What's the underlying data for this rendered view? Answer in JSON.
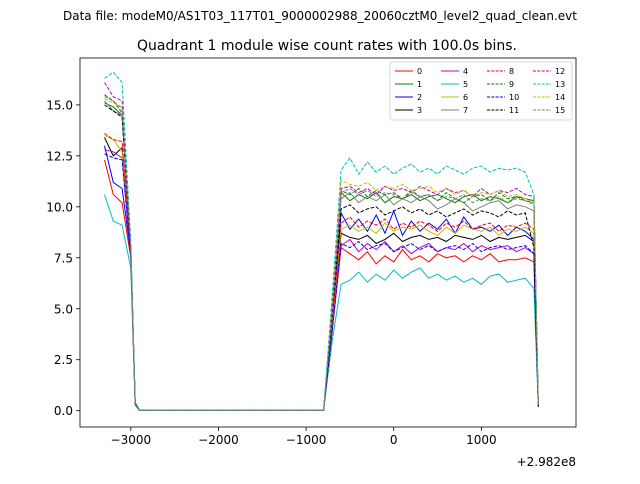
{
  "suptitle": "Data file: modeM0/AS1T03_117T01_9000002988_20060cztM0_level2_quad_clean.evt",
  "chart_data": {
    "type": "line",
    "title": "Quadrant 1 module wise count rates with 100.0s bins.",
    "xlabel": "",
    "ylabel": "",
    "x_offset_text": "+2.982e8",
    "xlim": [
      -3580,
      2080
    ],
    "ylim": [
      -0.8,
      17.3
    ],
    "x_ticks": [
      {
        "value": -3000,
        "label": "−3000"
      },
      {
        "value": -2000,
        "label": "−2000"
      },
      {
        "value": -1000,
        "label": "−1000"
      },
      {
        "value": 0,
        "label": "0"
      },
      {
        "value": 1000,
        "label": "1000"
      }
    ],
    "y_ticks": [
      {
        "value": 0,
        "label": "0.0"
      },
      {
        "value": 2.5,
        "label": "2.5"
      },
      {
        "value": 5,
        "label": "5.0"
      },
      {
        "value": 7.5,
        "label": "7.5"
      },
      {
        "value": 10,
        "label": "10.0"
      },
      {
        "value": 12.5,
        "label": "12.5"
      },
      {
        "value": 15,
        "label": "15.0"
      }
    ],
    "grid": false,
    "legend_position": "top-right",
    "legend_columns": 4,
    "x": [
      -3300,
      -3200,
      -3100,
      -3000,
      -2950,
      -2900,
      -800,
      -700,
      -600,
      -500,
      -400,
      -300,
      -200,
      -100,
      0,
      100,
      200,
      300,
      400,
      500,
      600,
      700,
      800,
      900,
      1000,
      1100,
      1200,
      1300,
      1400,
      1500,
      1600,
      1650
    ],
    "series": [
      {
        "name": "0",
        "color": "#ff0000",
        "dash": false,
        "values": [
          12.3,
          10.6,
          10.2,
          7.5,
          0.3,
          0.02,
          0.02,
          4.0,
          8.0,
          7.7,
          7.4,
          7.8,
          7.2,
          7.6,
          7.3,
          7.9,
          7.4,
          7.6,
          7.3,
          7.7,
          7.5,
          7.6,
          7.3,
          7.6,
          7.4,
          7.7,
          7.3,
          7.4,
          7.4,
          7.5,
          7.3,
          0.3
        ]
      },
      {
        "name": "1",
        "color": "#008000",
        "dash": false,
        "values": [
          15.1,
          14.9,
          14.5,
          7.9,
          0.4,
          0.02,
          0.02,
          5.0,
          10.7,
          10.3,
          10.6,
          10.4,
          10.7,
          10.2,
          10.5,
          10.4,
          10.6,
          10.3,
          10.5,
          10.6,
          10.4,
          10.2,
          10.5,
          10.6,
          10.3,
          10.5,
          10.4,
          10.2,
          10.5,
          10.4,
          10.3,
          0.3
        ]
      },
      {
        "name": "2",
        "color": "#0000ff",
        "dash": false,
        "values": [
          13.0,
          11.2,
          10.9,
          7.7,
          0.3,
          0.02,
          0.02,
          4.2,
          9.7,
          8.9,
          9.4,
          8.8,
          9.6,
          8.7,
          9.8,
          8.6,
          9.3,
          8.8,
          9.2,
          8.9,
          9.4,
          8.7,
          9.5,
          8.9,
          9.0,
          8.8,
          9.1,
          8.6,
          9.0,
          8.8,
          8.4,
          0.2
        ]
      },
      {
        "name": "3",
        "color": "#000000",
        "dash": false,
        "values": [
          13.4,
          12.5,
          12.9,
          7.9,
          0.3,
          0.02,
          0.02,
          4.1,
          8.7,
          8.5,
          8.4,
          8.6,
          8.2,
          8.4,
          8.7,
          8.3,
          8.5,
          8.6,
          8.4,
          8.5,
          8.3,
          8.6,
          8.5,
          8.4,
          8.6,
          8.3,
          8.5,
          8.4,
          8.5,
          8.6,
          8.3,
          0.2
        ]
      },
      {
        "name": "4",
        "color": "#bf00bf",
        "dash": false,
        "values": [
          12.8,
          12.7,
          12.4,
          7.6,
          0.3,
          0.02,
          0.02,
          4.1,
          8.1,
          8.4,
          7.8,
          8.2,
          7.9,
          8.3,
          7.8,
          8.1,
          7.7,
          8.0,
          8.2,
          7.8,
          8.0,
          7.9,
          8.2,
          7.8,
          8.1,
          7.9,
          8.0,
          8.1,
          7.8,
          8.0,
          7.7,
          0.2
        ]
      },
      {
        "name": "5",
        "color": "#00bfbf",
        "dash": false,
        "values": [
          10.6,
          9.3,
          9.1,
          7.0,
          0.3,
          0.02,
          0.02,
          3.5,
          6.2,
          6.4,
          6.8,
          6.3,
          6.7,
          6.4,
          6.9,
          6.5,
          6.8,
          7.0,
          6.5,
          6.7,
          6.4,
          6.6,
          6.3,
          6.5,
          6.2,
          6.6,
          6.7,
          6.3,
          6.4,
          6.5,
          6.0,
          0.2
        ]
      },
      {
        "name": "6",
        "color": "#bfbf00",
        "dash": false,
        "values": [
          13.5,
          13.3,
          12.7,
          7.8,
          0.3,
          0.02,
          0.02,
          4.3,
          8.9,
          9.1,
          8.8,
          9.0,
          8.7,
          9.2,
          8.8,
          9.0,
          8.9,
          9.1,
          8.8,
          8.6,
          9.0,
          8.7,
          9.1,
          8.9,
          8.8,
          9.0,
          8.6,
          8.9,
          8.8,
          9.0,
          8.7,
          0.2
        ]
      },
      {
        "name": "7",
        "color": "#808080",
        "dash": false,
        "values": [
          15.2,
          14.7,
          14.5,
          8.0,
          0.4,
          0.02,
          0.02,
          5.0,
          10.4,
          10.7,
          10.2,
          10.5,
          10.3,
          10.6,
          10.1,
          10.4,
          10.2,
          10.5,
          10.3,
          9.9,
          10.1,
          10.4,
          10.2,
          9.8,
          10.0,
          10.2,
          10.3,
          9.9,
          10.1,
          10.0,
          9.8,
          0.3
        ]
      },
      {
        "name": "8",
        "color": "#ff0000",
        "dash": true,
        "values": [
          13.6,
          13.3,
          13.2,
          7.7,
          0.3,
          0.02,
          0.02,
          4.4,
          9.2,
          9.5,
          9.0,
          9.3,
          9.1,
          9.4,
          8.9,
          9.2,
          9.0,
          9.3,
          9.1,
          8.8,
          9.2,
          9.0,
          9.3,
          8.9,
          9.1,
          9.2,
          8.8,
          9.1,
          9.0,
          9.2,
          8.9,
          0.2
        ]
      },
      {
        "name": "9",
        "color": "#008000",
        "dash": true,
        "values": [
          15.5,
          15.2,
          14.6,
          8.0,
          0.4,
          0.02,
          0.02,
          5.2,
          10.8,
          10.6,
          10.9,
          10.5,
          10.8,
          10.6,
          10.7,
          10.4,
          10.8,
          10.5,
          10.6,
          10.3,
          10.7,
          10.4,
          10.2,
          10.5,
          10.6,
          10.3,
          10.7,
          10.4,
          10.5,
          10.3,
          10.2,
          0.3
        ]
      },
      {
        "name": "10",
        "color": "#0000ff",
        "dash": true,
        "values": [
          12.6,
          12.4,
          12.3,
          7.6,
          0.3,
          0.02,
          0.02,
          4.0,
          8.2,
          8.0,
          8.3,
          7.9,
          8.1,
          8.2,
          7.8,
          8.0,
          8.2,
          7.9,
          8.1,
          7.8,
          8.0,
          8.1,
          7.9,
          8.2,
          7.8,
          8.0,
          8.1,
          7.9,
          8.0,
          8.1,
          7.7,
          0.2
        ]
      },
      {
        "name": "11",
        "color": "#000000",
        "dash": true,
        "values": [
          15.0,
          14.7,
          14.4,
          7.9,
          0.4,
          0.02,
          0.02,
          4.8,
          9.9,
          10.1,
          9.7,
          9.9,
          10.0,
          9.6,
          9.8,
          10.0,
          9.7,
          9.9,
          9.6,
          9.8,
          9.5,
          9.7,
          9.9,
          9.6,
          9.8,
          9.7,
          9.5,
          9.8,
          9.6,
          9.7,
          8.0,
          0.2
        ]
      },
      {
        "name": "12",
        "color": "#bf00bf",
        "dash": true,
        "values": [
          16.1,
          15.4,
          15.2,
          8.1,
          0.4,
          0.02,
          0.02,
          5.3,
          10.9,
          11.0,
          10.7,
          10.9,
          10.6,
          11.0,
          10.8,
          10.9,
          10.7,
          11.0,
          10.8,
          10.6,
          10.9,
          10.7,
          10.8,
          10.5,
          10.9,
          10.6,
          10.8,
          10.7,
          10.9,
          10.6,
          10.5,
          0.3
        ]
      },
      {
        "name": "13",
        "color": "#00bfbf",
        "dash": true,
        "values": [
          16.3,
          16.6,
          16.1,
          8.3,
          0.4,
          0.02,
          0.02,
          5.8,
          11.8,
          12.4,
          11.6,
          12.2,
          11.7,
          12.0,
          11.6,
          11.9,
          12.1,
          11.7,
          11.9,
          11.6,
          12.0,
          11.8,
          11.6,
          11.9,
          12.0,
          11.7,
          11.9,
          11.8,
          11.9,
          11.7,
          10.6,
          0.3
        ]
      },
      {
        "name": "14",
        "color": "#bfbf00",
        "dash": true,
        "values": [
          15.3,
          15.1,
          14.9,
          8.0,
          0.4,
          0.02,
          0.02,
          5.2,
          11.3,
          11.1,
          11.0,
          11.2,
          10.8,
          11.0,
          10.9,
          11.1,
          10.8,
          10.9,
          11.0,
          10.7,
          10.9,
          10.6,
          10.8,
          10.5,
          10.7,
          10.6,
          10.8,
          10.5,
          10.6,
          10.4,
          10.2,
          0.3
        ]
      },
      {
        "name": "15",
        "color": "#808080",
        "dash": true,
        "values": [
          15.4,
          15.2,
          14.8,
          8.0,
          0.4,
          0.02,
          0.02,
          5.0,
          10.7,
          10.9,
          10.6,
          10.8,
          10.5,
          10.7,
          10.6,
          10.4,
          10.7,
          10.5,
          10.6,
          10.3,
          10.5,
          10.4,
          10.6,
          10.2,
          10.4,
          10.3,
          10.5,
          10.2,
          10.4,
          10.3,
          10.1,
          0.3
        ]
      }
    ]
  }
}
